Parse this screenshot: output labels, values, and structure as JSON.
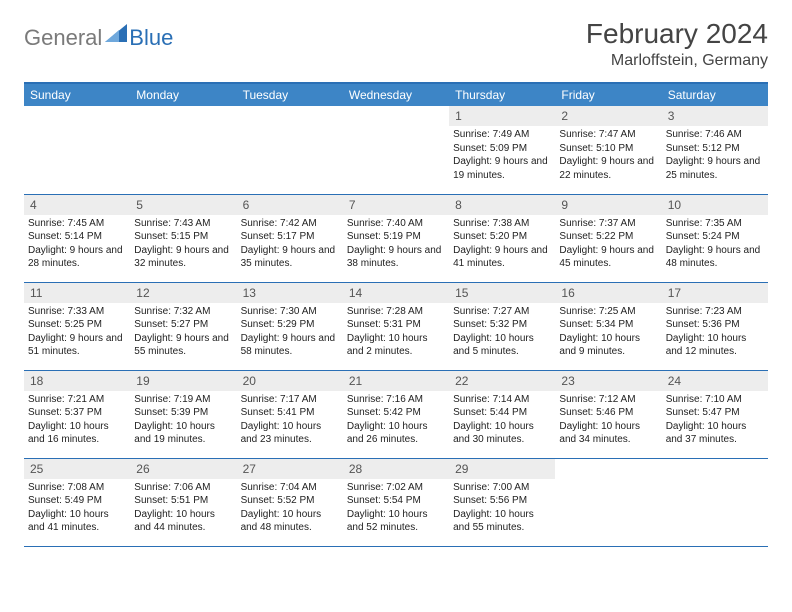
{
  "logo": {
    "text_general": "General",
    "text_blue": "Blue",
    "icon_color": "#2a6fb5"
  },
  "title": "February 2024",
  "location": "Marloffstein, Germany",
  "colors": {
    "header_bg": "#3d85c6",
    "border": "#2a6fb5",
    "daynum_bg": "#ededed"
  },
  "day_headers": [
    "Sunday",
    "Monday",
    "Tuesday",
    "Wednesday",
    "Thursday",
    "Friday",
    "Saturday"
  ],
  "weeks": [
    [
      null,
      null,
      null,
      null,
      {
        "n": "1",
        "sunrise": "Sunrise: 7:49 AM",
        "sunset": "Sunset: 5:09 PM",
        "daylight": "Daylight: 9 hours and 19 minutes."
      },
      {
        "n": "2",
        "sunrise": "Sunrise: 7:47 AM",
        "sunset": "Sunset: 5:10 PM",
        "daylight": "Daylight: 9 hours and 22 minutes."
      },
      {
        "n": "3",
        "sunrise": "Sunrise: 7:46 AM",
        "sunset": "Sunset: 5:12 PM",
        "daylight": "Daylight: 9 hours and 25 minutes."
      }
    ],
    [
      {
        "n": "4",
        "sunrise": "Sunrise: 7:45 AM",
        "sunset": "Sunset: 5:14 PM",
        "daylight": "Daylight: 9 hours and 28 minutes."
      },
      {
        "n": "5",
        "sunrise": "Sunrise: 7:43 AM",
        "sunset": "Sunset: 5:15 PM",
        "daylight": "Daylight: 9 hours and 32 minutes."
      },
      {
        "n": "6",
        "sunrise": "Sunrise: 7:42 AM",
        "sunset": "Sunset: 5:17 PM",
        "daylight": "Daylight: 9 hours and 35 minutes."
      },
      {
        "n": "7",
        "sunrise": "Sunrise: 7:40 AM",
        "sunset": "Sunset: 5:19 PM",
        "daylight": "Daylight: 9 hours and 38 minutes."
      },
      {
        "n": "8",
        "sunrise": "Sunrise: 7:38 AM",
        "sunset": "Sunset: 5:20 PM",
        "daylight": "Daylight: 9 hours and 41 minutes."
      },
      {
        "n": "9",
        "sunrise": "Sunrise: 7:37 AM",
        "sunset": "Sunset: 5:22 PM",
        "daylight": "Daylight: 9 hours and 45 minutes."
      },
      {
        "n": "10",
        "sunrise": "Sunrise: 7:35 AM",
        "sunset": "Sunset: 5:24 PM",
        "daylight": "Daylight: 9 hours and 48 minutes."
      }
    ],
    [
      {
        "n": "11",
        "sunrise": "Sunrise: 7:33 AM",
        "sunset": "Sunset: 5:25 PM",
        "daylight": "Daylight: 9 hours and 51 minutes."
      },
      {
        "n": "12",
        "sunrise": "Sunrise: 7:32 AM",
        "sunset": "Sunset: 5:27 PM",
        "daylight": "Daylight: 9 hours and 55 minutes."
      },
      {
        "n": "13",
        "sunrise": "Sunrise: 7:30 AM",
        "sunset": "Sunset: 5:29 PM",
        "daylight": "Daylight: 9 hours and 58 minutes."
      },
      {
        "n": "14",
        "sunrise": "Sunrise: 7:28 AM",
        "sunset": "Sunset: 5:31 PM",
        "daylight": "Daylight: 10 hours and 2 minutes."
      },
      {
        "n": "15",
        "sunrise": "Sunrise: 7:27 AM",
        "sunset": "Sunset: 5:32 PM",
        "daylight": "Daylight: 10 hours and 5 minutes."
      },
      {
        "n": "16",
        "sunrise": "Sunrise: 7:25 AM",
        "sunset": "Sunset: 5:34 PM",
        "daylight": "Daylight: 10 hours and 9 minutes."
      },
      {
        "n": "17",
        "sunrise": "Sunrise: 7:23 AM",
        "sunset": "Sunset: 5:36 PM",
        "daylight": "Daylight: 10 hours and 12 minutes."
      }
    ],
    [
      {
        "n": "18",
        "sunrise": "Sunrise: 7:21 AM",
        "sunset": "Sunset: 5:37 PM",
        "daylight": "Daylight: 10 hours and 16 minutes."
      },
      {
        "n": "19",
        "sunrise": "Sunrise: 7:19 AM",
        "sunset": "Sunset: 5:39 PM",
        "daylight": "Daylight: 10 hours and 19 minutes."
      },
      {
        "n": "20",
        "sunrise": "Sunrise: 7:17 AM",
        "sunset": "Sunset: 5:41 PM",
        "daylight": "Daylight: 10 hours and 23 minutes."
      },
      {
        "n": "21",
        "sunrise": "Sunrise: 7:16 AM",
        "sunset": "Sunset: 5:42 PM",
        "daylight": "Daylight: 10 hours and 26 minutes."
      },
      {
        "n": "22",
        "sunrise": "Sunrise: 7:14 AM",
        "sunset": "Sunset: 5:44 PM",
        "daylight": "Daylight: 10 hours and 30 minutes."
      },
      {
        "n": "23",
        "sunrise": "Sunrise: 7:12 AM",
        "sunset": "Sunset: 5:46 PM",
        "daylight": "Daylight: 10 hours and 34 minutes."
      },
      {
        "n": "24",
        "sunrise": "Sunrise: 7:10 AM",
        "sunset": "Sunset: 5:47 PM",
        "daylight": "Daylight: 10 hours and 37 minutes."
      }
    ],
    [
      {
        "n": "25",
        "sunrise": "Sunrise: 7:08 AM",
        "sunset": "Sunset: 5:49 PM",
        "daylight": "Daylight: 10 hours and 41 minutes."
      },
      {
        "n": "26",
        "sunrise": "Sunrise: 7:06 AM",
        "sunset": "Sunset: 5:51 PM",
        "daylight": "Daylight: 10 hours and 44 minutes."
      },
      {
        "n": "27",
        "sunrise": "Sunrise: 7:04 AM",
        "sunset": "Sunset: 5:52 PM",
        "daylight": "Daylight: 10 hours and 48 minutes."
      },
      {
        "n": "28",
        "sunrise": "Sunrise: 7:02 AM",
        "sunset": "Sunset: 5:54 PM",
        "daylight": "Daylight: 10 hours and 52 minutes."
      },
      {
        "n": "29",
        "sunrise": "Sunrise: 7:00 AM",
        "sunset": "Sunset: 5:56 PM",
        "daylight": "Daylight: 10 hours and 55 minutes."
      },
      null,
      null
    ]
  ]
}
